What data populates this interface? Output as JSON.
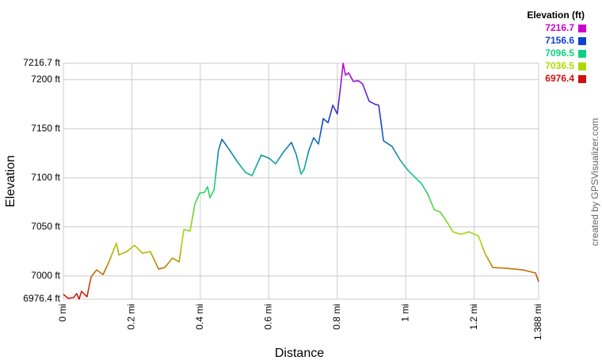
{
  "chart_data": {
    "type": "line",
    "x_label": "Distance",
    "y_label": "Elevation",
    "credit": "created by GPSVisualizer.com",
    "legend": {
      "title": "Elevation (ft)",
      "entries": [
        {
          "value": 7216.7,
          "color": "#d000d0"
        },
        {
          "value": 7156.6,
          "color": "#1040d0"
        },
        {
          "value": 7096.5,
          "color": "#10d080"
        },
        {
          "value": 7036.5,
          "color": "#b0d800"
        },
        {
          "value": 6976.4,
          "color": "#d01010"
        }
      ]
    },
    "xlim": [
      0,
      1.388
    ],
    "ylim": [
      6976.4,
      7216.7
    ],
    "xticks": [
      {
        "value": 0,
        "label": "0 mi"
      },
      {
        "value": 0.2,
        "label": "0.2 mi"
      },
      {
        "value": 0.4,
        "label": "0.4 mi"
      },
      {
        "value": 0.6,
        "label": "0.6 mi"
      },
      {
        "value": 0.8,
        "label": "0.8 mi"
      },
      {
        "value": 1,
        "label": "1 mi"
      },
      {
        "value": 1.2,
        "label": "1.2 mi"
      },
      {
        "value": 1.388,
        "label": "1.388 mi"
      }
    ],
    "yticks": [
      {
        "value": 6976.4,
        "label": "6976.4 ft"
      },
      {
        "value": 7000,
        "label": "7000 ft"
      },
      {
        "value": 7050,
        "label": "7050 ft"
      },
      {
        "value": 7100,
        "label": "7100 ft"
      },
      {
        "value": 7150,
        "label": "7150 ft"
      },
      {
        "value": 7200,
        "label": "7200 ft"
      },
      {
        "value": 7216.7,
        "label": "7216.7 ft"
      }
    ],
    "grid": true,
    "x": [
      0,
      0.014,
      0.03,
      0.039,
      0.046,
      0.053,
      0.069,
      0.081,
      0.097,
      0.116,
      0.134,
      0.155,
      0.162,
      0.185,
      0.208,
      0.231,
      0.254,
      0.278,
      0.296,
      0.319,
      0.338,
      0.352,
      0.37,
      0.384,
      0.398,
      0.412,
      0.421,
      0.428,
      0.44,
      0.453,
      0.463,
      0.486,
      0.509,
      0.532,
      0.551,
      0.578,
      0.601,
      0.62,
      0.643,
      0.666,
      0.68,
      0.694,
      0.703,
      0.717,
      0.731,
      0.745,
      0.759,
      0.773,
      0.787,
      0.8,
      0.81,
      0.817,
      0.824,
      0.833,
      0.847,
      0.861,
      0.874,
      0.893,
      0.911,
      0.921,
      0.935,
      0.96,
      0.983,
      1.006,
      1.022,
      1.046,
      1.064,
      1.083,
      1.101,
      1.124,
      1.138,
      1.161,
      1.184,
      1.212,
      1.231,
      1.254,
      1.295,
      1.342,
      1.379,
      1.388
    ],
    "y": [
      6981.2,
      6977.2,
      6978.0,
      6982.0,
      6976.4,
      6984.4,
      6978.8,
      6999.0,
      7006.2,
      7001.4,
      7015.1,
      7033.6,
      7021.5,
      7024.8,
      7031.2,
      7023.2,
      7024.8,
      7007.0,
      7008.6,
      7018.3,
      7014.3,
      7047.4,
      7045.7,
      7073.2,
      7084.4,
      7085.2,
      7090.9,
      7079.6,
      7087.6,
      7128.0,
      7139.3,
      7128.0,
      7115.9,
      7105.4,
      7102.2,
      7123.2,
      7119.9,
      7114.3,
      7126.4,
      7136.1,
      7123.9,
      7103.8,
      7108.6,
      7128.0,
      7140.9,
      7134.4,
      7160.3,
      7156.2,
      7174.0,
      7165.1,
      7194.1,
      7216.7,
      7204.6,
      7207.0,
      7198.2,
      7199.0,
      7195.7,
      7178.0,
      7174.8,
      7174.0,
      7137.7,
      7132.0,
      7118.3,
      7107.8,
      7102.2,
      7094.1,
      7083.6,
      7067.5,
      7065.1,
      7053.0,
      7044.9,
      7042.5,
      7044.9,
      7040.9,
      7023.2,
      7008.6,
      7007.8,
      7006.2,
      7003.0,
      6994.1
    ]
  }
}
